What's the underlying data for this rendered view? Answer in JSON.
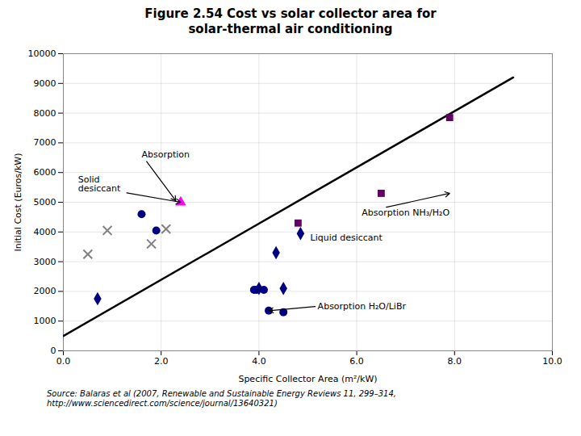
{
  "chart_data": {
    "type": "scatter",
    "title": "Figure 2.54 Cost vs solar collector area for\nsolar-thermal air conditioning",
    "xlabel": "Specific Collector Area (m²/kW)",
    "ylabel": "Initial Cost (Euros/kW)",
    "xlim": [
      0.0,
      10.0
    ],
    "ylim": [
      0,
      10000
    ],
    "xticks": [
      {
        "value": 0.0,
        "label": "0.0"
      },
      {
        "value": 2.0,
        "label": "2.0"
      },
      {
        "value": 4.0,
        "label": "4.0"
      },
      {
        "value": 6.0,
        "label": "6.0"
      },
      {
        "value": 8.0,
        "label": "8.0"
      },
      {
        "value": 10.0,
        "label": "10.0"
      }
    ],
    "yticks": [
      0,
      1000,
      2000,
      3000,
      4000,
      5000,
      6000,
      7000,
      8000,
      9000,
      10000
    ],
    "grid": true,
    "series": [
      {
        "type": "line",
        "color": "#000000",
        "line_style": "solid",
        "x": [
          0.0,
          9.2
        ],
        "values": [
          500,
          9200
        ]
      },
      {
        "type": "scatter",
        "color": "#660066",
        "marker": "square",
        "x": [
          4.8,
          6.5,
          7.9
        ],
        "values": [
          4300,
          5300,
          7850
        ]
      },
      {
        "type": "scatter",
        "color": "#FF00FF",
        "marker": "triangle",
        "x": [
          2.4
        ],
        "values": [
          5000
        ]
      },
      {
        "type": "scatter",
        "color": "#000080",
        "marker": "circle",
        "x": [
          1.6,
          1.9,
          3.9,
          3.95,
          4.1,
          4.2,
          4.5
        ],
        "values": [
          4600,
          4050,
          2050,
          2050,
          2050,
          1350,
          1300
        ]
      },
      {
        "type": "scatter",
        "color": "#000080",
        "marker": "diamond",
        "x": [
          0.7,
          4.0,
          4.35,
          4.5,
          4.85
        ],
        "values": [
          1750,
          2100,
          3300,
          2100,
          3950
        ]
      },
      {
        "type": "scatter",
        "color": "#808080",
        "marker": "x",
        "x": [
          0.5,
          0.9,
          1.8,
          2.1
        ],
        "values": [
          3250,
          4050,
          3600,
          4100
        ]
      }
    ],
    "annotations": [
      {
        "text": "Absorption",
        "x": 1.6,
        "y": 6600,
        "arrow_to": [
          2.3,
          5050
        ]
      },
      {
        "text": "Solid\ndesiccant",
        "x": 0.3,
        "y": 5600,
        "arrow_to": [
          2.4,
          5000
        ]
      },
      {
        "text": "Absorption NH₃/H₂O",
        "x": 6.1,
        "y": 4650,
        "arrow_to": [
          7.9,
          5300
        ]
      },
      {
        "text": "Liquid desiccant",
        "x": 5.05,
        "y": 3800,
        "arrow_to": null
      },
      {
        "text": "Absorption H₂O/LiBr",
        "x": 5.2,
        "y": 1500,
        "arrow_to": [
          4.2,
          1350
        ]
      }
    ],
    "caption": "Source: Balaras et al (2007, Renewable and Sustainable Energy Reviews 11, 299–314,\nhttp://www.sciencedirect.com/science/journal/13640321)"
  }
}
